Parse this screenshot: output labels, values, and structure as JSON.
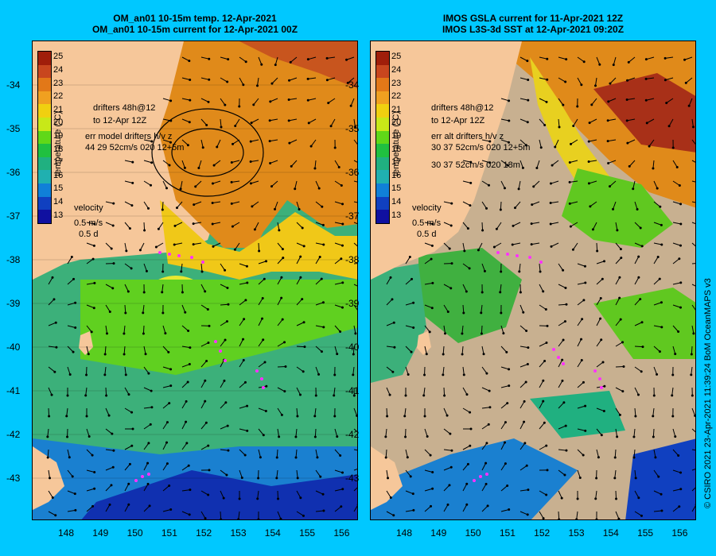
{
  "left": {
    "title_line1": "OM_an01 10-15m temp. 12-Apr-2021",
    "title_line2": "OM_an01 10-15m current for 12-Apr-2021 00Z",
    "drifters_line1": "drifters 48h@12",
    "drifters_line2": "to 12-Apr 12Z",
    "err_line1": "err model drifters h/v z",
    "err_line2": "44 29 52cm/s 020 12+5m"
  },
  "right": {
    "title_line1": "IMOS GSLA current for 11-Apr-2021 12Z",
    "title_line2": "IMOS L3S-3d SST at 12-Apr-2021 09:20Z",
    "drifters_line1": "drifters 48h@12",
    "drifters_line2": "to 12-Apr 12Z",
    "err_line1": "err alt drifters h/v z",
    "err_line2": "30 37 52cm/s 020 12+5m",
    "err_line3": "30 37 52cm/s 020 18m"
  },
  "colorbar": {
    "label": "temperature (°C)",
    "ticks": [
      "25",
      "24",
      "23",
      "22",
      "21",
      "20",
      "19",
      "18",
      "17",
      "16",
      "15",
      "14",
      "13"
    ],
    "colors": [
      "#a01e0a",
      "#c8461e",
      "#e27818",
      "#f0a020",
      "#f0d010",
      "#c8e818",
      "#60d818",
      "#20c040",
      "#20b080",
      "#20b0b0",
      "#1080d8",
      "#1040c0",
      "#1010a0"
    ]
  },
  "velocity_legend": {
    "label": "velocity",
    "speed": "0.5 m/s",
    "time": "0.5 d"
  },
  "yticks": [
    "-34",
    "-35",
    "-36",
    "-37",
    "-38",
    "-39",
    "-40",
    "-41",
    "-42",
    "-43"
  ],
  "xticks": [
    "148",
    "149",
    "150",
    "151",
    "152",
    "153",
    "154",
    "155",
    "156"
  ],
  "credit": "© CSIRO 2021  23-Apr-2021 11:39:24 BoM OceanMAPS v3",
  "colors": {
    "background": "#00c8ff",
    "land": "#f6c79a",
    "drifter": "#ff30ff",
    "cloud": "#c8b090"
  }
}
